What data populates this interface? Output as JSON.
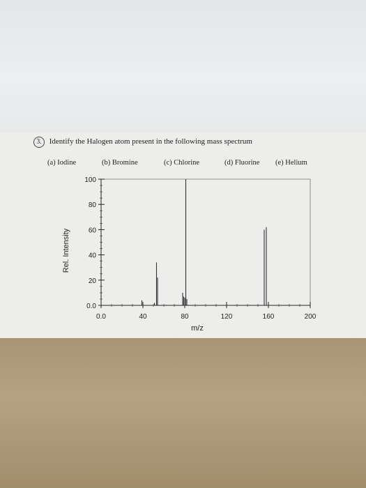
{
  "question": {
    "number": "3.",
    "text": "Identify the Halogen atom present in the following mass spectrum"
  },
  "choices": [
    {
      "label": "(a) Iodine"
    },
    {
      "label": "(b) Bromine"
    },
    {
      "label": "(c) Chlorine"
    },
    {
      "label": "(d) Fluorine"
    },
    {
      "label": "(e) Helium"
    }
  ],
  "chart_data": {
    "type": "bar",
    "xlabel": "m/z",
    "ylabel": "Rel. Intensity",
    "xlim": [
      0,
      200
    ],
    "ylim": [
      0,
      100
    ],
    "x_ticks": [
      "0.0",
      "40",
      "80",
      "120",
      "160",
      "200"
    ],
    "y_ticks": [
      "0.0",
      "20",
      "40",
      "60",
      "80",
      "100"
    ],
    "peaks": [
      {
        "x": 39,
        "y": 4
      },
      {
        "x": 51,
        "y": 2
      },
      {
        "x": 53,
        "y": 34
      },
      {
        "x": 54,
        "y": 22
      },
      {
        "x": 78,
        "y": 10
      },
      {
        "x": 79,
        "y": 7
      },
      {
        "x": 80,
        "y": 6
      },
      {
        "x": 81,
        "y": 100
      },
      {
        "x": 82,
        "y": 5
      },
      {
        "x": 156,
        "y": 60
      },
      {
        "x": 158,
        "y": 62
      }
    ]
  }
}
